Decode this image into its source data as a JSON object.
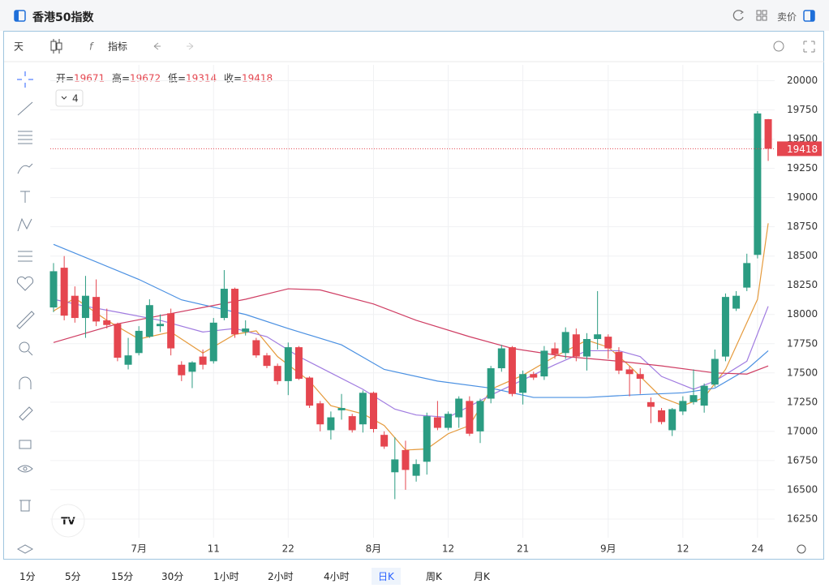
{
  "header": {
    "title": "香港50指数",
    "side_label": "卖价"
  },
  "toolbar": {
    "period": "天",
    "indicator": "指标"
  },
  "legend_labels": {
    "open": "开=",
    "high": "高=",
    "low": "低=",
    "close": "收="
  },
  "indicator_count": 4,
  "timeframes": [
    "1分",
    "5分",
    "15分",
    "30分",
    "1小时",
    "2小时",
    "4小时",
    "日K",
    "周K",
    "月K"
  ],
  "active_timeframe": "日K",
  "chart_data": {
    "type": "candlestick",
    "categories": [
      null,
      null,
      null,
      null,
      null,
      null,
      null,
      null,
      "7月",
      null,
      null,
      null,
      null,
      null,
      null,
      "11",
      null,
      null,
      null,
      null,
      null,
      null,
      "22",
      null,
      null,
      null,
      null,
      null,
      null,
      null,
      "8月",
      null,
      null,
      null,
      null,
      null,
      null,
      "12",
      null,
      null,
      null,
      null,
      null,
      null,
      "21",
      null,
      null,
      null,
      null,
      null,
      null,
      null,
      "9月",
      null,
      null,
      null,
      null,
      null,
      null,
      "12",
      null,
      null,
      null,
      null,
      null,
      null,
      "24",
      null
    ],
    "open": [
      18060,
      18400,
      18160,
      17970,
      18150,
      17950,
      17920,
      17570,
      17670,
      17810,
      17900,
      18010,
      17570,
      17510,
      17640,
      17600,
      17970,
      18220,
      17850,
      17780,
      17650,
      17560,
      17430,
      17720,
      17460,
      17240,
      17010,
      17180,
      17130,
      17060,
      17330,
      16970,
      16650,
      16840,
      16620,
      16740,
      17120,
      17030,
      17120,
      17260,
      17000,
      17280,
      17540,
      17720,
      17330,
      17490,
      17470,
      17710,
      17670,
      17830,
      17640,
      17790,
      17810,
      17680,
      17530,
      17490,
      17250,
      17180,
      17010,
      17170,
      17250,
      17220,
      17400,
      17640,
      18050,
      18230,
      18510,
      19671
    ],
    "high": [
      18440,
      18500,
      18240,
      18330,
      18300,
      18050,
      17930,
      17800,
      17900,
      18130,
      18000,
      18050,
      17600,
      17600,
      17700,
      17970,
      18380,
      18230,
      17950,
      17800,
      17670,
      17580,
      17760,
      17730,
      17470,
      17260,
      17170,
      17320,
      17150,
      17350,
      17340,
      17000,
      16950,
      16920,
      16760,
      17160,
      17260,
      17170,
      17300,
      17300,
      17280,
      17560,
      17740,
      17730,
      17520,
      17510,
      17730,
      17760,
      17890,
      17880,
      17840,
      18200,
      17830,
      17720,
      17560,
      17540,
      17290,
      17200,
      17200,
      17300,
      17530,
      17410,
      17700,
      18180,
      18200,
      18520,
      19740,
      19672
    ],
    "low": [
      18020,
      17950,
      17930,
      17800,
      17900,
      17880,
      17600,
      17530,
      17650,
      17800,
      17850,
      17650,
      17430,
      17370,
      17530,
      17580,
      17950,
      17800,
      17820,
      17630,
      17540,
      17400,
      17310,
      17440,
      17200,
      17000,
      16930,
      17100,
      16990,
      16990,
      16990,
      16850,
      16420,
      16500,
      16570,
      16630,
      17010,
      17010,
      17030,
      16960,
      16900,
      17240,
      17510,
      17300,
      17230,
      17440,
      17440,
      17620,
      17620,
      17600,
      17520,
      17700,
      17620,
      17490,
      17300,
      17320,
      17070,
      17060,
      16960,
      17140,
      17230,
      17160,
      17380,
      17600,
      18030,
      18200,
      18480,
      19314
    ],
    "close": [
      18370,
      17990,
      17970,
      18160,
      17940,
      17910,
      17630,
      17650,
      17860,
      18080,
      17920,
      17710,
      17480,
      17590,
      17570,
      17930,
      18220,
      17830,
      17880,
      17650,
      17560,
      17430,
      17720,
      17450,
      17220,
      17060,
      17120,
      17200,
      17010,
      17330,
      17020,
      16870,
      16760,
      16670,
      16720,
      17130,
      17030,
      17150,
      17280,
      16980,
      17260,
      17540,
      17710,
      17320,
      17490,
      17460,
      17690,
      17660,
      17850,
      17640,
      17790,
      17830,
      17710,
      17520,
      17490,
      17450,
      17210,
      17080,
      17190,
      17260,
      17310,
      17390,
      17620,
      18150,
      18160,
      18440,
      19720,
      19418
    ],
    "up_color": "#2b9c82",
    "down_color": "#e5464f",
    "ylim": [
      16090,
      20080
    ],
    "yticks": [
      16250,
      16500,
      16750,
      17000,
      17250,
      17500,
      17750,
      18000,
      18250,
      18500,
      18750,
      19000,
      19250,
      19500,
      19750,
      20000
    ],
    "grid": true,
    "overlays": [
      {
        "color": "#e59a3c",
        "x": [
          0,
          2,
          5,
          8,
          11,
          14,
          17,
          19,
          21,
          24,
          26,
          29,
          31,
          33,
          35,
          37,
          39,
          41,
          44,
          47,
          50,
          52,
          54,
          57,
          59,
          61,
          63,
          66,
          67
        ],
        "values": [
          18030,
          18140,
          17950,
          17790,
          17850,
          17670,
          17830,
          17860,
          17640,
          17430,
          17220,
          17150,
          17050,
          16840,
          16850,
          16980,
          17050,
          17360,
          17480,
          17640,
          17780,
          17720,
          17560,
          17290,
          17220,
          17290,
          17530,
          18130,
          18780
        ]
      },
      {
        "color": "#a07be0",
        "x": [
          0,
          3,
          6,
          10,
          14,
          17,
          20,
          23,
          26,
          29,
          32,
          34,
          37,
          41,
          44,
          47,
          50,
          53,
          55,
          57,
          60,
          62,
          65,
          67
        ],
        "values": [
          18130,
          18070,
          18020,
          17950,
          17850,
          17880,
          17810,
          17640,
          17500,
          17360,
          17190,
          17140,
          17120,
          17310,
          17440,
          17570,
          17690,
          17690,
          17640,
          17470,
          17360,
          17430,
          17600,
          18070
        ]
      },
      {
        "color": "#4a90e2",
        "x": [
          0,
          8,
          12,
          18,
          22,
          27,
          31,
          36,
          41,
          45,
          50,
          54,
          59,
          62,
          65,
          67
        ],
        "values": [
          18600,
          18300,
          18125,
          18000,
          17880,
          17740,
          17530,
          17430,
          17370,
          17290,
          17290,
          17310,
          17330,
          17370,
          17530,
          17690
        ]
      },
      {
        "color": "#cf3d63",
        "x": [
          0,
          6,
          14,
          18,
          22,
          25,
          30,
          34,
          39,
          43,
          48,
          53,
          57,
          62,
          65,
          67
        ],
        "values": [
          17760,
          17920,
          18060,
          18130,
          18220,
          18210,
          18090,
          17950,
          17810,
          17710,
          17640,
          17600,
          17560,
          17500,
          17490,
          17560
        ]
      }
    ]
  }
}
